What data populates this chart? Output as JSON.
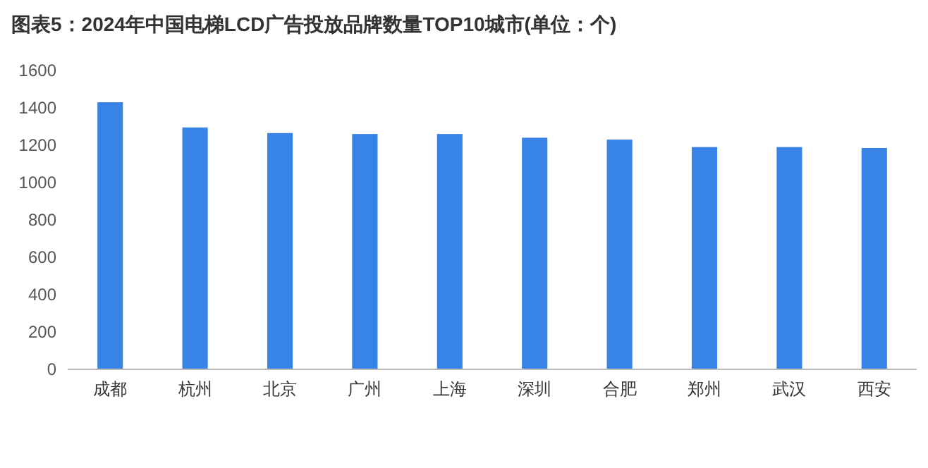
{
  "chart_data": {
    "type": "bar",
    "title": "图表5：2024年中国电梯LCD广告投放品牌数量TOP10城市(单位：个)",
    "categories": [
      "成都",
      "杭州",
      "北京",
      "广州",
      "上海",
      "深圳",
      "合肥",
      "郑州",
      "武汉",
      "西安"
    ],
    "values": [
      1430,
      1295,
      1265,
      1260,
      1260,
      1240,
      1230,
      1190,
      1190,
      1185
    ],
    "color": "#3784e6",
    "ylim": [
      0,
      1600
    ],
    "yticks": [
      0,
      200,
      400,
      600,
      800,
      1000,
      1200,
      1400,
      1600
    ],
    "grid": false
  }
}
